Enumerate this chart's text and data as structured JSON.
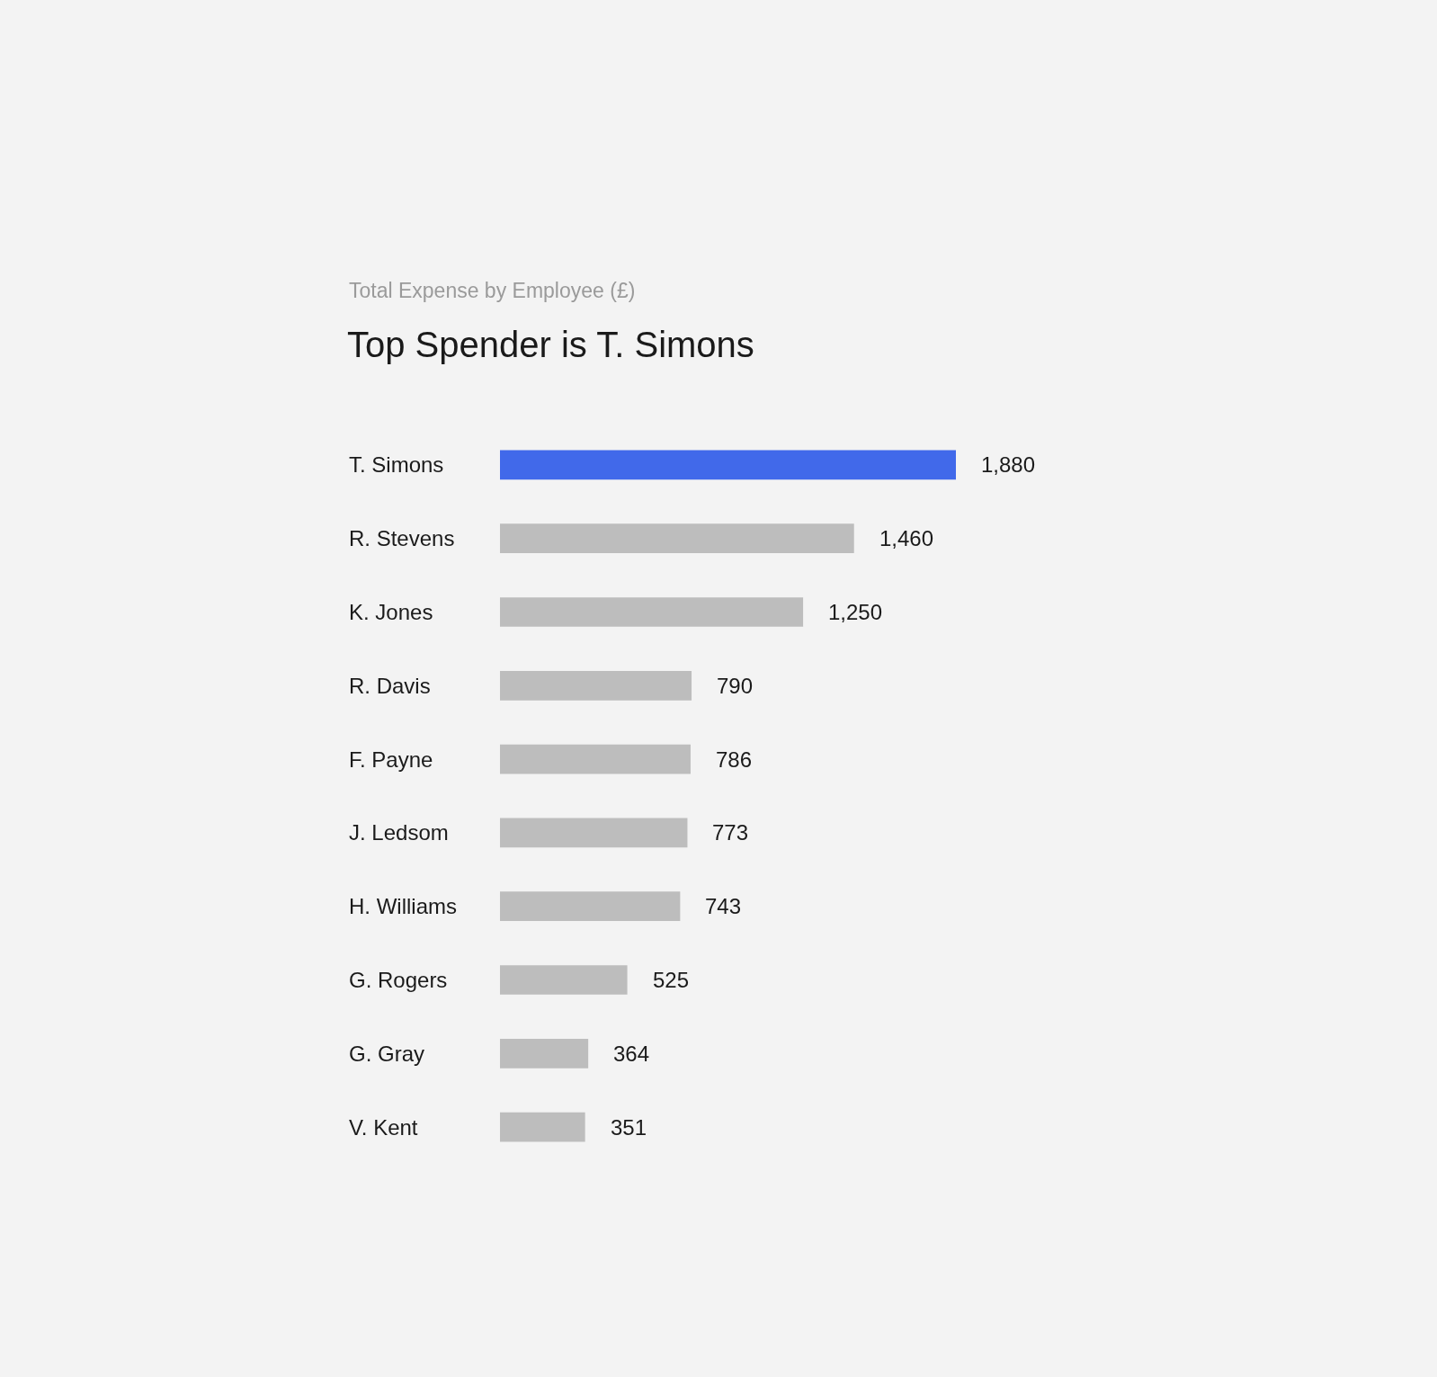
{
  "chart_data": {
    "type": "bar",
    "orientation": "horizontal",
    "title": "Top Spender is T. Simons",
    "subtitle": "Total Expense by Employee (£)",
    "categories": [
      "T. Simons",
      "R. Stevens",
      "K. Jones",
      "R. Davis",
      "F. Payne",
      "J. Ledsom",
      "H. Williams",
      "G. Rogers",
      "G. Gray",
      "V. Kent"
    ],
    "values": [
      1880,
      1460,
      1250,
      790,
      786,
      773,
      743,
      525,
      364,
      351
    ],
    "colors": [
      "#4169ea",
      "#bdbdbd",
      "#bdbdbd",
      "#bdbdbd",
      "#bdbdbd",
      "#bdbdbd",
      "#bdbdbd",
      "#bdbdbd",
      "#bdbdbd",
      "#bdbdbd"
    ],
    "value_labels": [
      "1,880",
      "1,460",
      "1,250",
      "790",
      "786",
      "773",
      "743",
      "525",
      "364",
      "351"
    ],
    "grid": false,
    "legend": false
  }
}
